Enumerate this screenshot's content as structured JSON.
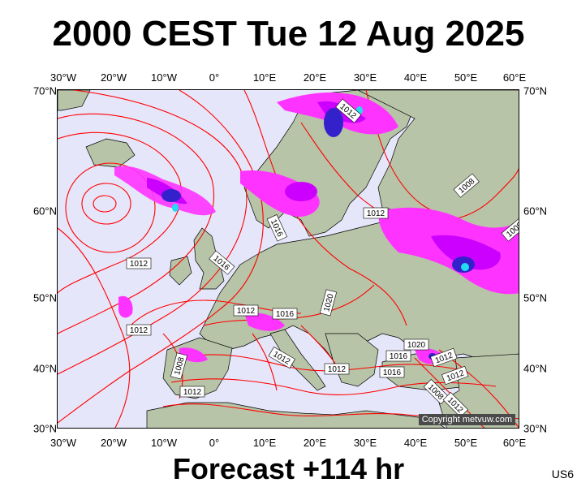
{
  "title": "2000 CEST Tue 12 Aug 2025",
  "footer": "Forecast +114 hr",
  "region_code": "US6",
  "copyright": "Copyright metvuw.com",
  "longitude_ticks": [
    "30°W",
    "20°W",
    "10°W",
    "0°",
    "10°E",
    "20°E",
    "30°E",
    "40°E",
    "50°E",
    "60°E"
  ],
  "latitude_ticks": [
    "70°N",
    "60°N",
    "50°N",
    "40°N",
    "30°N"
  ],
  "isobar_labels": [
    "1012",
    "1012",
    "1016",
    "1016",
    "1012",
    "1016",
    "1020",
    "1012",
    "1012",
    "1016",
    "1012",
    "1016",
    "1020",
    "1012",
    "1012",
    "1008",
    "1012",
    "1012",
    "1008",
    "1012",
    "1008",
    "1008"
  ],
  "colors": {
    "background_sea": "#e6e6fa",
    "land": "#b7c4a8",
    "isobar": "#ff0000",
    "precip_light": "#ff33ff",
    "precip_moderate": "#cc00ff",
    "precip_heavy": "#3322cc",
    "precip_extreme": "#22ddee"
  }
}
